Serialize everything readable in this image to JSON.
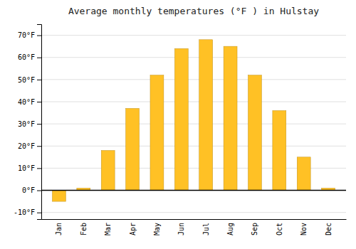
{
  "chart_data": {
    "type": "bar",
    "title": "Average monthly temperatures (°F ) in Hulstay",
    "categories": [
      "Jan",
      "Feb",
      "Mar",
      "Apr",
      "May",
      "Jun",
      "Jul",
      "Aug",
      "Sep",
      "Oct",
      "Nov",
      "Dec"
    ],
    "values": [
      -5,
      1,
      18,
      37,
      52,
      64,
      68,
      65,
      52,
      36,
      15,
      1
    ],
    "color": "#FFC125",
    "ylim": [
      -13,
      75
    ],
    "yticks": [
      {
        "value": -10,
        "label": "-10°F"
      },
      {
        "value": 0,
        "label": "0°F"
      },
      {
        "value": 10,
        "label": "10°F"
      },
      {
        "value": 20,
        "label": "20°F"
      },
      {
        "value": 30,
        "label": "30°F"
      },
      {
        "value": 40,
        "label": "40°F"
      },
      {
        "value": 50,
        "label": "50°F"
      },
      {
        "value": 60,
        "label": "60°F"
      },
      {
        "value": 70,
        "label": "70°F"
      }
    ],
    "grid": true
  }
}
